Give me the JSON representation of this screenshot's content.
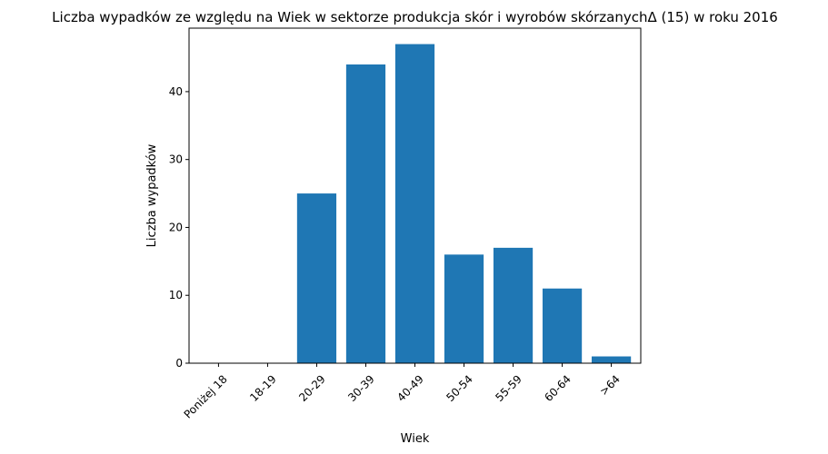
{
  "chart_data": {
    "type": "bar",
    "title": "Liczba wypadków ze względu na Wiek w sektorze produkcja skór i wyrobów skórzanychΔ (15) w roku 2016",
    "xlabel": "Wiek",
    "ylabel": "Liczba wypadków",
    "categories": [
      "Poniżej 18",
      "18-19",
      "20-29",
      "30-39",
      "40-49",
      "50-54",
      "55-59",
      "60-64",
      ">64"
    ],
    "values": [
      0,
      0,
      25,
      44,
      47,
      16,
      17,
      11,
      1
    ],
    "ylim": [
      0,
      49.35
    ],
    "yticks": [
      0,
      10,
      20,
      30,
      40
    ],
    "bar_color": "#1f77b4",
    "grid": false,
    "legend": "none"
  }
}
